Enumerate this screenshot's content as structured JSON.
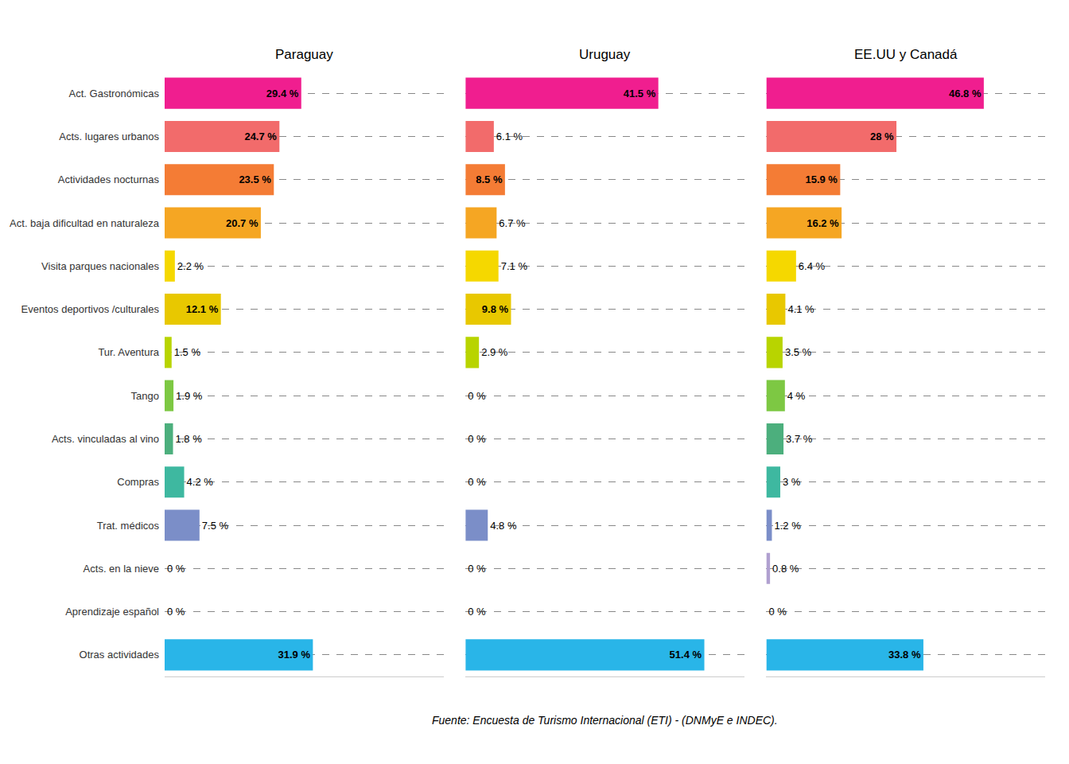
{
  "chart_data": [
    {
      "type": "bar",
      "orientation": "horizontal",
      "title": "Paraguay",
      "categories": [
        "Act. Gastronómicas",
        "Acts. lugares urbanos",
        "Actividades nocturnas",
        "Act. baja dificultad en naturaleza",
        "Visita parques nacionales",
        "Eventos deportivos /culturales",
        "Tur. Aventura",
        "Tango",
        "Acts. vinculadas al vino",
        "Compras",
        "Trat. médicos",
        "Acts. en la nieve",
        "Aprendizaje español",
        "Otras actividades"
      ],
      "values": [
        29.4,
        24.7,
        23.5,
        20.7,
        2.2,
        12.1,
        1.5,
        1.9,
        1.8,
        4.2,
        7.5,
        0.0,
        0.0,
        31.9
      ],
      "value_labels": [
        "29.4 %",
        "24.7 %",
        "23.5 %",
        "20.7 %",
        "2.2 %",
        "12.1 %",
        "1.5 %",
        "1.9 %",
        "1.8 %",
        "4.2 %",
        "7.5 %",
        "0 %",
        "0 %",
        "31.9 %"
      ],
      "colors": [
        "#f01e8f",
        "#f26b6b",
        "#f47c35",
        "#f5a623",
        "#f5d800",
        "#e8c800",
        "#b8d400",
        "#7dc843",
        "#4caf7d",
        "#3eb8a0",
        "#7b8ec8",
        "#b0a0d0",
        "#c8b8e0",
        "#29b5e8"
      ],
      "xlim": [
        0,
        60
      ],
      "data_labels": true,
      "grid": true,
      "tick_labels": "y",
      "annotations": [
        "Fuente: Encuesta de Turismo Internacional (ETI) - (DNMyE e INDEC)."
      ]
    },
    {
      "type": "bar",
      "orientation": "horizontal",
      "title": "Uruguay",
      "categories": [
        "Act. Gastronómicas",
        "Acts. lugares urbanos",
        "Actividades nocturnas",
        "Act. baja dificultad en naturaleza",
        "Visita parques nacionales",
        "Eventos deportivos /culturales",
        "Tur. Aventura",
        "Tango",
        "Acts. vinculadas al vino",
        "Compras",
        "Trat. médicos",
        "Acts. en la nieve",
        "Aprendizaje español",
        "Otras actividades"
      ],
      "values": [
        41.5,
        6.1,
        8.5,
        6.7,
        7.1,
        9.8,
        2.9,
        0.0,
        0.0,
        0.0,
        4.8,
        0.0,
        0.0,
        51.4
      ],
      "value_labels": [
        "41.5 %",
        "6.1 %",
        "8.5 %",
        "6.7 %",
        "7.1 %",
        "9.8 %",
        "2.9 %",
        "0 %",
        "0 %",
        "0 %",
        "4.8 %",
        "0 %",
        "0 %",
        "51.4 %"
      ],
      "colors": [
        "#f01e8f",
        "#f26b6b",
        "#f47c35",
        "#f5a623",
        "#f5d800",
        "#e8c800",
        "#b8d400",
        "#7dc843",
        "#4caf7d",
        "#3eb8a0",
        "#7b8ec8",
        "#b0a0d0",
        "#c8b8e0",
        "#29b5e8"
      ],
      "xlim": [
        0,
        60
      ],
      "data_labels": true,
      "grid": true,
      "tick_labels": false
    },
    {
      "type": "bar",
      "orientation": "horizontal",
      "title": "EE.UU y Canadá",
      "categories": [
        "Act. Gastronómicas",
        "Acts. lugares urbanos",
        "Actividades nocturnas",
        "Act. baja dificultad en naturaleza",
        "Visita parques nacionales",
        "Eventos deportivos /culturales",
        "Tur. Aventura",
        "Tango",
        "Acts. vinculadas al vino",
        "Compras",
        "Trat. médicos",
        "Acts. en la nieve",
        "Aprendizaje español",
        "Otras actividades"
      ],
      "values": [
        46.8,
        28.0,
        15.9,
        16.2,
        6.4,
        4.1,
        3.5,
        4.0,
        3.7,
        3.0,
        1.2,
        0.8,
        0.0,
        33.8
      ],
      "value_labels": [
        "46.8 %",
        "28 %",
        "15.9 %",
        "16.2 %",
        "6.4 %",
        "4.1 %",
        "3.5 %",
        "4 %",
        "3.7 %",
        "3 %",
        "1.2 %",
        "0.8 %",
        "0 %",
        "33.8 %"
      ],
      "colors": [
        "#f01e8f",
        "#f26b6b",
        "#f47c35",
        "#f5a623",
        "#f5d800",
        "#e8c800",
        "#b8d400",
        "#7dc843",
        "#4caf7d",
        "#3eb8a0",
        "#7b8ec8",
        "#b0a0d0",
        "#c8b8e0",
        "#29b5e8"
      ],
      "xlim": [
        0,
        60
      ],
      "data_labels": true,
      "grid": true,
      "tick_labels": false
    }
  ]
}
